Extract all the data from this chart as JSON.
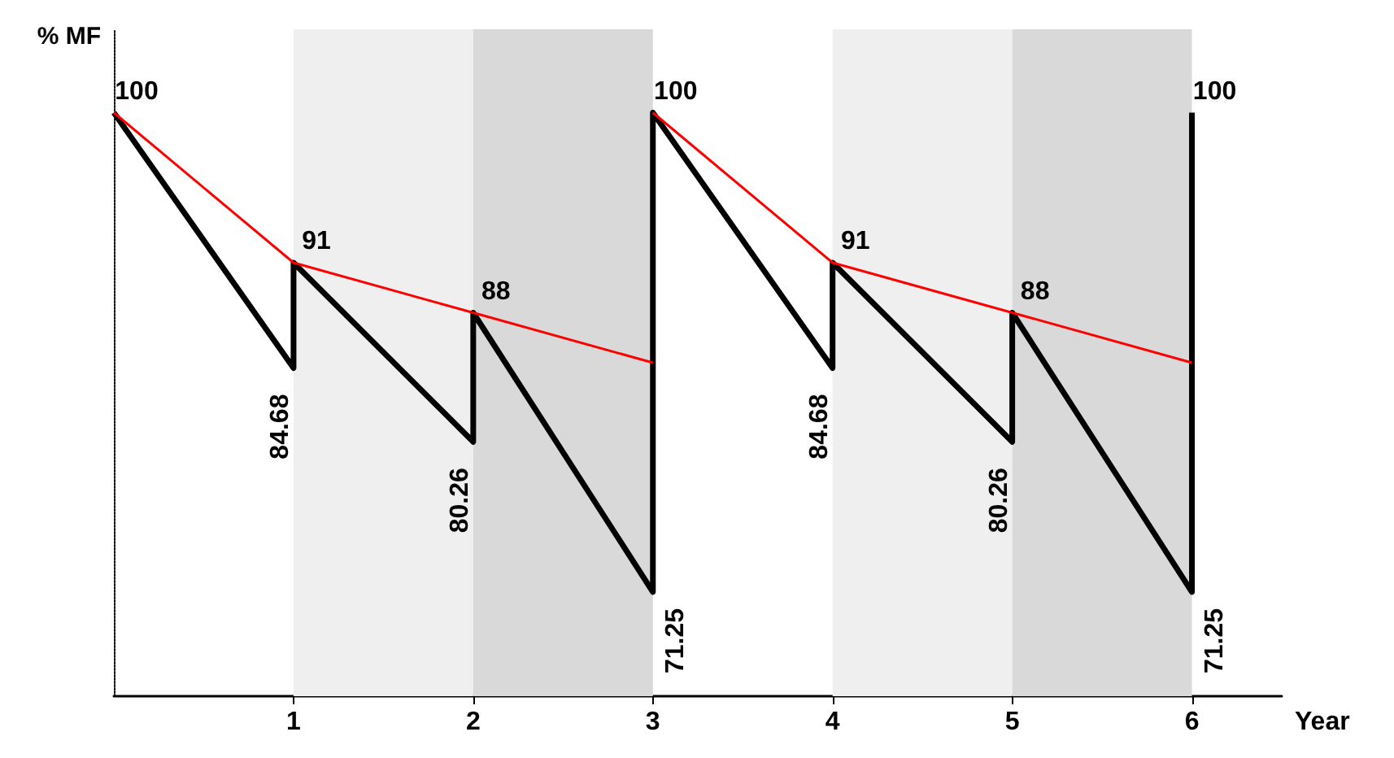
{
  "chart_data": {
    "type": "line",
    "xlabel": "Year",
    "ylabel": "% MF",
    "xlim": [
      0,
      6.5
    ],
    "xticks": [
      1,
      2,
      3,
      4,
      5,
      6
    ],
    "ylim": [
      65,
      105
    ],
    "grid": false,
    "marker": "none",
    "line_style": "solid",
    "series": [
      {
        "color": "#000000",
        "x": [
          0,
          1,
          1,
          2,
          2,
          3,
          3,
          4,
          4,
          5,
          5,
          6,
          6
        ],
        "values": [
          100,
          84.68,
          91,
          80.26,
          88,
          71.25,
          100,
          84.68,
          91,
          80.26,
          88,
          71.25,
          100
        ],
        "value_labels": [
          "100",
          "84.68",
          "91",
          "80.26",
          "88",
          "71.25",
          "100",
          "84.68",
          "91",
          "80.26",
          "88",
          "71.25",
          "100"
        ]
      },
      {
        "color": "#ff0000",
        "x": [
          0,
          1,
          2,
          3
        ],
        "values": [
          100,
          91,
          88,
          85
        ]
      },
      {
        "color": "#ff0000",
        "x": [
          3,
          4,
          5,
          6
        ],
        "values": [
          100,
          91,
          88,
          85
        ]
      }
    ],
    "bands": [
      {
        "axis": "x",
        "from": 1,
        "to": 2,
        "color": "#efefef"
      },
      {
        "axis": "x",
        "from": 2,
        "to": 3,
        "color": "#d9d9d9"
      },
      {
        "axis": "x",
        "from": 4,
        "to": 5,
        "color": "#efefef"
      },
      {
        "axis": "x",
        "from": 5,
        "to": 6,
        "color": "#d9d9d9"
      }
    ]
  }
}
